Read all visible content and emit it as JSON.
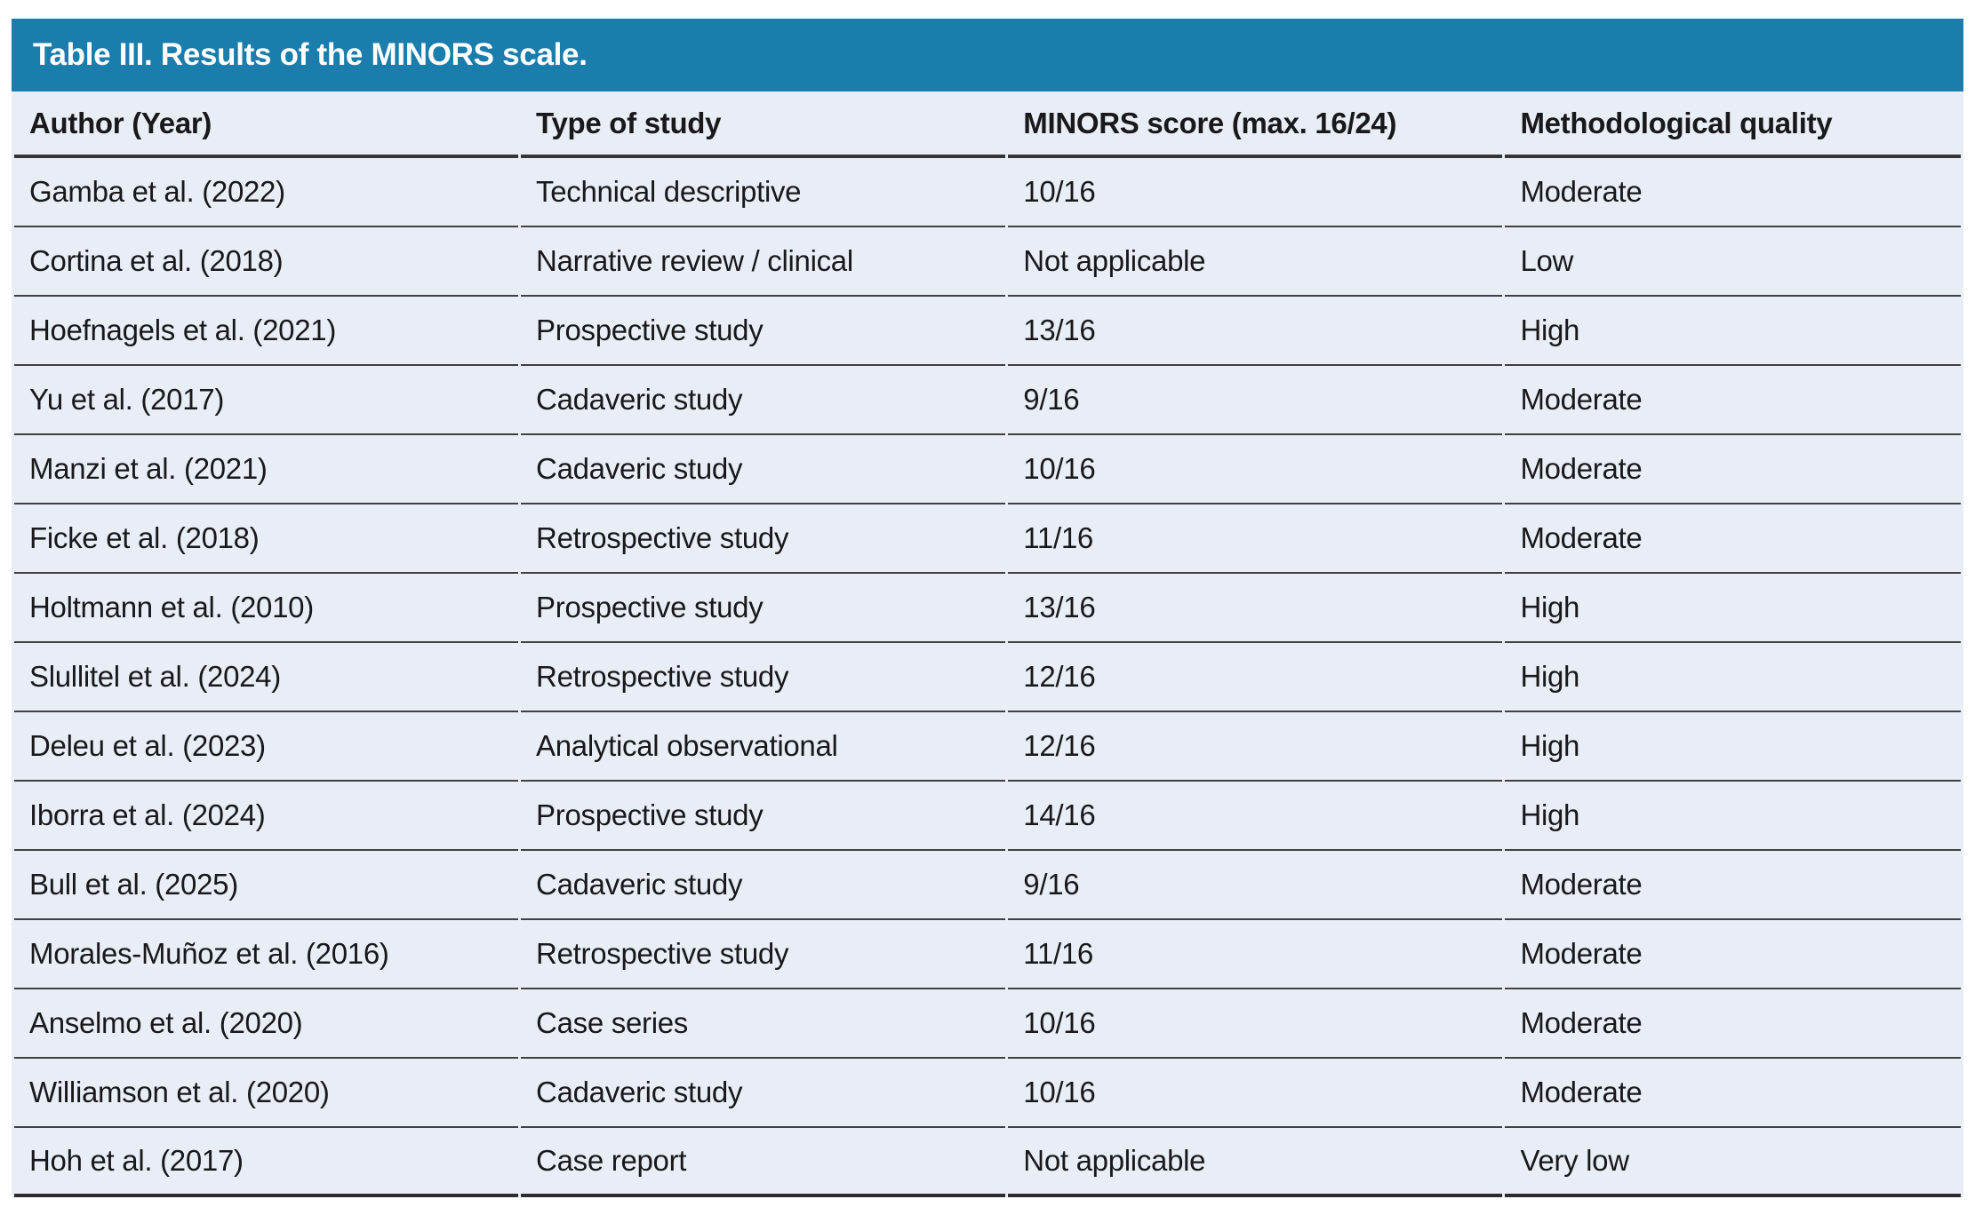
{
  "colors": {
    "title_bar_blue": "#1a7dab",
    "row_background": "#e9edf6",
    "separator_line": "#3f4042",
    "header_underline": "#353535"
  },
  "table": {
    "title": "Table III. Results of the MINORS scale.",
    "columns": [
      "Author (Year)",
      "Type of study",
      "MINORS score (max. 16/24)",
      "Methodological quality"
    ],
    "rows": [
      {
        "author": "Gamba et al. (2022)",
        "study_type": "Technical descriptive",
        "score": "10/16",
        "quality": "Moderate"
      },
      {
        "author": "Cortina et al. (2018)",
        "study_type": "Narrative review / clinical",
        "score": "Not applicable",
        "quality": "Low"
      },
      {
        "author": "Hoefnagels et al. (2021)",
        "study_type": "Prospective study",
        "score": "13/16",
        "quality": "High"
      },
      {
        "author": "Yu et al. (2017)",
        "study_type": "Cadaveric study",
        "score": "9/16",
        "quality": "Moderate"
      },
      {
        "author": "Manzi et al. (2021)",
        "study_type": "Cadaveric study",
        "score": "10/16",
        "quality": "Moderate"
      },
      {
        "author": "Ficke et al. (2018)",
        "study_type": "Retrospective study",
        "score": "11/16",
        "quality": "Moderate"
      },
      {
        "author": "Holtmann et al. (2010)",
        "study_type": "Prospective study",
        "score": "13/16",
        "quality": "High"
      },
      {
        "author": "Slullitel et al. (2024)",
        "study_type": "Retrospective study",
        "score": "12/16",
        "quality": "High"
      },
      {
        "author": "Deleu et al. (2023)",
        "study_type": "Analytical observational",
        "score": "12/16",
        "quality": "High"
      },
      {
        "author": "Iborra et al. (2024)",
        "study_type": "Prospective study",
        "score": "14/16",
        "quality": "High"
      },
      {
        "author": "Bull et al. (2025)",
        "study_type": "Cadaveric study",
        "score": "9/16",
        "quality": "Moderate"
      },
      {
        "author": "Morales-Muñoz et al. (2016)",
        "study_type": "Retrospective study",
        "score": "11/16",
        "quality": "Moderate"
      },
      {
        "author": "Anselmo et al. (2020)",
        "study_type": "Case series",
        "score": "10/16",
        "quality": "Moderate"
      },
      {
        "author": "Williamson et al. (2020)",
        "study_type": "Cadaveric study",
        "score": "10/16",
        "quality": "Moderate"
      },
      {
        "author": "Hoh et al. (2017)",
        "study_type": "Case report",
        "score": "Not applicable",
        "quality": "Very low"
      }
    ]
  }
}
